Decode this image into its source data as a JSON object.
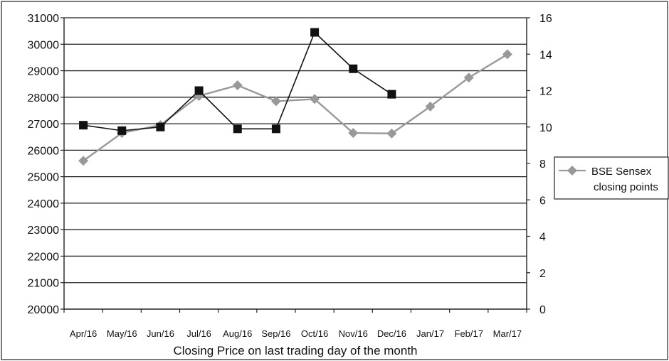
{
  "chart_data": {
    "type": "line",
    "categories": [
      "Apr/16",
      "May/16",
      "Jun/16",
      "Jul/16",
      "Aug/16",
      "Sep/16",
      "Oct/16",
      "Nov/16",
      "Dec/16",
      "Jan/17",
      "Feb/17",
      "Mar/17"
    ],
    "xlabel": "Closing Price on last trading day of the month",
    "y_left": {
      "ylim": [
        20000,
        31000
      ],
      "ticks": [
        20000,
        21000,
        22000,
        23000,
        24000,
        25000,
        26000,
        27000,
        28000,
        29000,
        30000,
        31000
      ]
    },
    "y_right": {
      "ylim": [
        0,
        16
      ],
      "ticks": [
        0,
        2,
        4,
        6,
        8,
        10,
        12,
        14,
        16
      ]
    },
    "grid": true,
    "legend_position": "right",
    "series": [
      {
        "name": "BSE Sensex closing points",
        "axis": "left",
        "marker": "diamond",
        "color": "#999999",
        "values": [
          25600,
          26650,
          26950,
          28050,
          28450,
          27850,
          27930,
          26650,
          26630,
          27650,
          28740,
          29620
        ]
      },
      {
        "axis": "right",
        "marker": "square",
        "color": "#111111",
        "values": [
          10.1,
          9.8,
          10.0,
          12.0,
          9.9,
          9.9,
          15.2,
          13.2,
          11.8,
          null,
          null,
          null
        ]
      }
    ]
  }
}
